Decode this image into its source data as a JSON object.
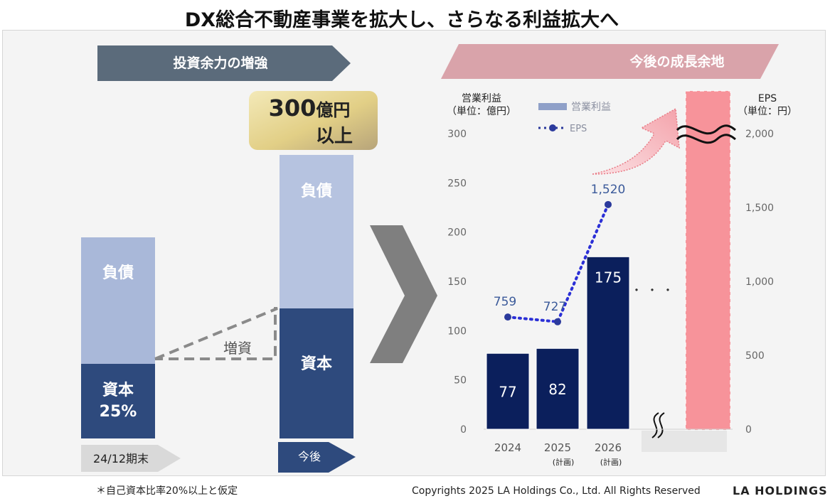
{
  "title": "DX総合不動産事業を拡大し、さらなる利益拡大へ",
  "left": {
    "banner": "投資余力の増強",
    "callout_line1_num": "300",
    "callout_line1_unit": "億円",
    "callout_line2": "以上",
    "bar_before": {
      "debt_label": "負債",
      "equity_label": "資本",
      "equity_ratio": "25%"
    },
    "bar_after": {
      "debt_label": "負債",
      "equity_label": "資本"
    },
    "increase_label": "増資",
    "period_before": "24/12期末",
    "period_after": "今後"
  },
  "right": {
    "banner": "今後の成長余地",
    "left_axis_title_1": "営業利益",
    "left_axis_title_2": "（単位：億円）",
    "right_axis_title_1": "EPS",
    "right_axis_title_2": "（単位：円）",
    "legend_bar": "営業利益",
    "legend_line": "EPS",
    "ellipsis": "・・・",
    "x_sub_2025": "(計画)",
    "x_sub_2026": "(計画)"
  },
  "footer": {
    "note": "＊自己資本比率20%以上と仮定",
    "copyright": "Copyrights 2025 LA Holdings Co., Ltd.  All Rights Reserved",
    "brand": "LA HOLDINGS"
  },
  "colors": {
    "navy": "#0b1f5c",
    "equity": "#2e4a7d",
    "debt": "#a9b8d9",
    "eps_line": "#2b2fd6",
    "pink": "#f7939a",
    "banner_left": "#5b6b7b",
    "banner_right": "#d9a3aa"
  },
  "chart_data": {
    "type": "bar",
    "categories": [
      "2024",
      "2025",
      "2026"
    ],
    "series": [
      {
        "name": "営業利益",
        "type": "bar",
        "axis": "left",
        "values": [
          77,
          82,
          175
        ]
      },
      {
        "name": "EPS",
        "type": "line",
        "axis": "right",
        "values": [
          759,
          727,
          1520
        ]
      }
    ],
    "eps_labels": [
      "759",
      "727",
      "1,520"
    ],
    "ylim": [
      0,
      300
    ],
    "yticks": [
      "0",
      "50",
      "100",
      "150",
      "200",
      "250",
      "300"
    ],
    "y2lim": [
      0,
      2000
    ],
    "y2ticks": [
      "0",
      "500",
      "1,000",
      "1,500",
      "2,000"
    ],
    "legend": "top-left"
  }
}
